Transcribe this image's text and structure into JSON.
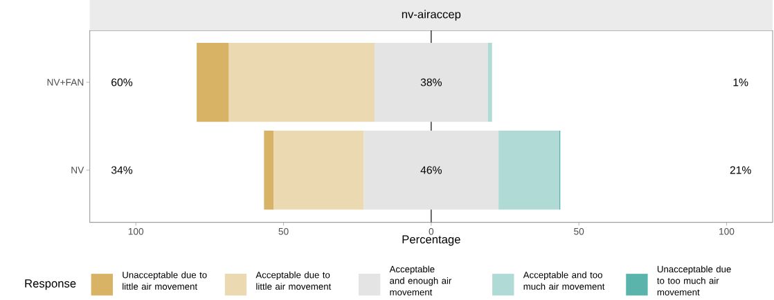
{
  "chart_data": {
    "type": "bar",
    "orientation": "horizontal",
    "title": "nv-airaccep",
    "xlabel": "Percentage",
    "legend_title": "Response",
    "legend": "bottom",
    "categories": [
      "NV+FAN",
      "NV"
    ],
    "series": [
      {
        "name": "Unacceptable due to little air movement",
        "color": "#d8b365",
        "values": [
          10.9,
          3.3
        ],
        "base": [
          -79.4,
          -56.6
        ]
      },
      {
        "name": "Acceptable due to little air movement",
        "color": "#ebd9b2",
        "values": [
          49.3,
          30.5
        ],
        "base": [
          -68.5,
          -53.3
        ]
      },
      {
        "name": "Acceptable and enough air movement",
        "color": "#e4e4e4",
        "values": [
          38.4,
          45.6
        ],
        "base": [
          -19.2,
          -22.8
        ]
      },
      {
        "name": "Acceptable and too much air movement",
        "color": "#afdad6",
        "values": [
          1.4,
          20.6
        ],
        "base": [
          19.2,
          22.8
        ]
      },
      {
        "name": "Unacceptable due to too much air movement",
        "color": "#5ab4ac",
        "values": [
          null,
          0.3
        ],
        "base": [
          null,
          43.4
        ]
      }
    ],
    "xlim": [
      -115.6,
      115.6
    ],
    "xticks": [
      {
        "value": -100,
        "label": "100"
      },
      {
        "value": -50,
        "label": "50"
      },
      0,
      50,
      100
    ],
    "ref_lines": [
      {
        "axis": "x",
        "value": 0,
        "color": "#000000"
      }
    ],
    "annotations": [
      "60%",
      "38%",
      "1%",
      "34%",
      "46%",
      "21%"
    ]
  }
}
